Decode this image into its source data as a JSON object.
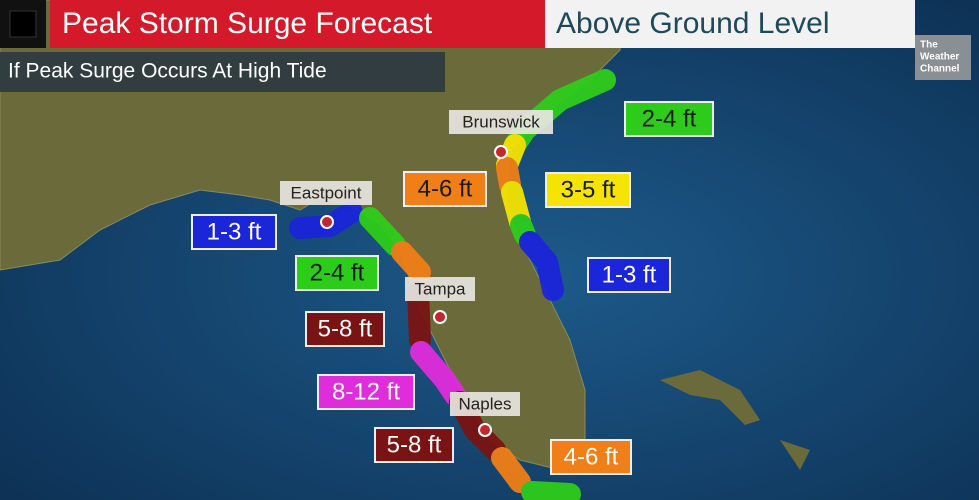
{
  "header": {
    "title": "Peak Storm Surge Forecast",
    "level": "Above Ground Level",
    "subtitle": "If Peak Surge Occurs At High Tide",
    "logo": [
      "The",
      "Weather",
      "Channel"
    ]
  },
  "cities": [
    "Brunswick",
    "Eastpoint",
    "Tampa",
    "Naples"
  ],
  "surge_labels": [
    {
      "text": "2-4 ft",
      "color": "#2ecc1a",
      "text_color": "#1a1a1a"
    },
    {
      "text": "4-6 ft",
      "color": "#f07f17",
      "text_color": "#1a1a1a"
    },
    {
      "text": "3-5 ft",
      "color": "#f5e400",
      "text_color": "#1a1a1a"
    },
    {
      "text": "1-3 ft",
      "color": "#1b25d9",
      "text_color": "#ffffff"
    },
    {
      "text": "2-4 ft",
      "color": "#2ecc1a",
      "text_color": "#1a1a1a"
    },
    {
      "text": "1-3 ft",
      "color": "#1b25d9",
      "text_color": "#ffffff"
    },
    {
      "text": "5-8 ft",
      "color": "#7a1414",
      "text_color": "#ffffff"
    },
    {
      "text": "8-12 ft",
      "color": "#e02ddc",
      "text_color": "#ffffff"
    },
    {
      "text": "5-8 ft",
      "color": "#7a1414",
      "text_color": "#ffffff"
    },
    {
      "text": "4-6 ft",
      "color": "#f07f17",
      "text_color": "#ffffff"
    }
  ]
}
